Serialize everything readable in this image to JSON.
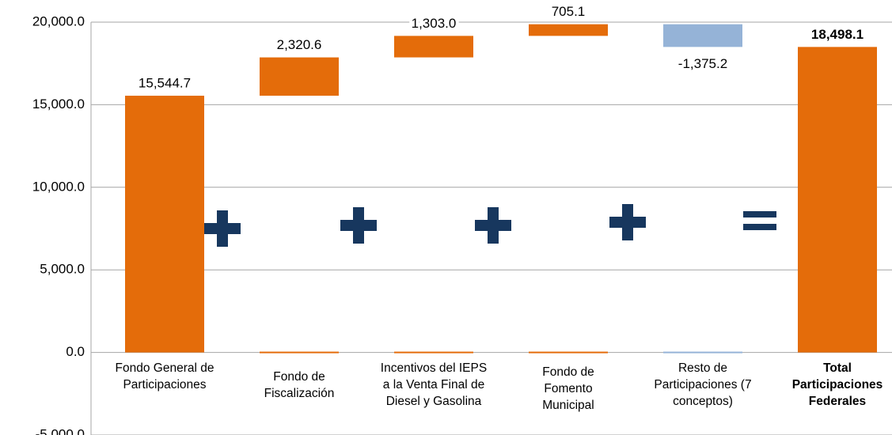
{
  "chart_data": {
    "type": "waterfall",
    "categories": [
      "Fondo General de Participaciones",
      "Fondo de Fiscalización",
      "Incentivos del IEPS a la Venta Final de Diesel y Gasolina",
      "Fondo de Fomento Municipal",
      "Resto de Participaciones (7 conceptos)",
      "Total Participaciones Federales"
    ],
    "values": [
      15544.7,
      2320.6,
      1303.0,
      705.1,
      -1375.2,
      18498.1
    ],
    "value_labels": [
      "15,544.7",
      "2,320.6",
      "1,303.0",
      "705.1",
      "-1,375.2",
      "18,498.1"
    ],
    "measure": [
      "absolute",
      "relative",
      "relative",
      "relative",
      "relative",
      "total"
    ],
    "color": "#E46C0A",
    "negative_color": "#95B3D7",
    "ylim": [
      -5000,
      20000
    ],
    "yticks": [
      {
        "value": -5000,
        "label": "-5,000.0"
      },
      {
        "value": 0,
        "label": "0.0"
      },
      {
        "value": 5000,
        "label": "5,000.0"
      },
      {
        "value": 10000,
        "label": "10,000.0"
      },
      {
        "value": 15000,
        "label": "15,000.0"
      },
      {
        "value": 20000,
        "label": "20,000.0"
      }
    ],
    "grid": true
  }
}
